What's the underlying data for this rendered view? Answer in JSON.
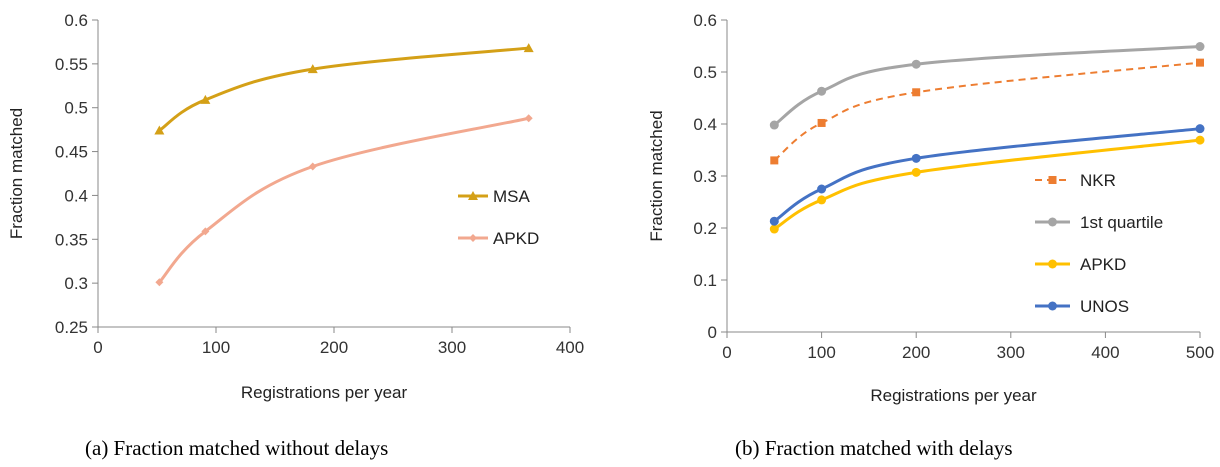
{
  "captions": {
    "a": "(a) Fraction matched without delays",
    "b": "(b) Fraction matched with delays"
  },
  "chart_data": [
    {
      "type": "line",
      "xlabel": "Registrations per year",
      "ylabel": "Fraction matched",
      "xlim": [
        0,
        400
      ],
      "ylim": [
        0.25,
        0.6
      ],
      "xticks": [
        0,
        100,
        200,
        300,
        400
      ],
      "yticks": [
        0.25,
        0.3,
        0.35,
        0.4,
        0.45,
        0.5,
        0.55,
        0.6
      ],
      "ytick_labels": [
        "0.25",
        "0.3",
        "0.35",
        "0.4",
        "0.45",
        "0.5",
        "0.55",
        "0.6"
      ],
      "grid": false,
      "legend": "center-right",
      "series": [
        {
          "name": "MSA",
          "color": "#d4a017",
          "marker": "triangle",
          "dash": false,
          "x": [
            52,
            91,
            182,
            365
          ],
          "y": [
            0.474,
            0.509,
            0.544,
            0.568
          ]
        },
        {
          "name": "APKD",
          "color": "#f2a88f",
          "marker": "diamond",
          "dash": false,
          "x": [
            52,
            91,
            182,
            365
          ],
          "y": [
            0.301,
            0.359,
            0.433,
            0.488
          ]
        }
      ]
    },
    {
      "type": "line",
      "xlabel": "Registrations per year",
      "ylabel": "Fraction matched",
      "xlim": [
        0,
        500
      ],
      "ylim": [
        0,
        0.6
      ],
      "xticks": [
        0,
        100,
        200,
        300,
        400,
        500
      ],
      "yticks": [
        0,
        0.1,
        0.2,
        0.3,
        0.4,
        0.5,
        0.6
      ],
      "ytick_labels": [
        "0",
        "0.1",
        "0.2",
        "0.3",
        "0.4",
        "0.5",
        "0.6"
      ],
      "grid": false,
      "legend": "bottom-right",
      "series": [
        {
          "name": "NKR",
          "color": "#ed7d31",
          "marker": "square",
          "dash": true,
          "x": [
            50,
            100,
            200,
            500
          ],
          "y": [
            0.33,
            0.402,
            0.461,
            0.518
          ]
        },
        {
          "name": "1st quartile",
          "color": "#a5a5a5",
          "marker": "circle",
          "dash": false,
          "x": [
            50,
            100,
            200,
            500
          ],
          "y": [
            0.398,
            0.463,
            0.515,
            0.549
          ]
        },
        {
          "name": "APKD",
          "color": "#ffc000",
          "marker": "circle",
          "dash": false,
          "x": [
            50,
            100,
            200,
            500
          ],
          "y": [
            0.198,
            0.254,
            0.307,
            0.369
          ]
        },
        {
          "name": "UNOS",
          "color": "#4472c4",
          "marker": "circle",
          "dash": false,
          "x": [
            50,
            100,
            200,
            500
          ],
          "y": [
            0.213,
            0.275,
            0.334,
            0.391
          ]
        }
      ]
    }
  ]
}
